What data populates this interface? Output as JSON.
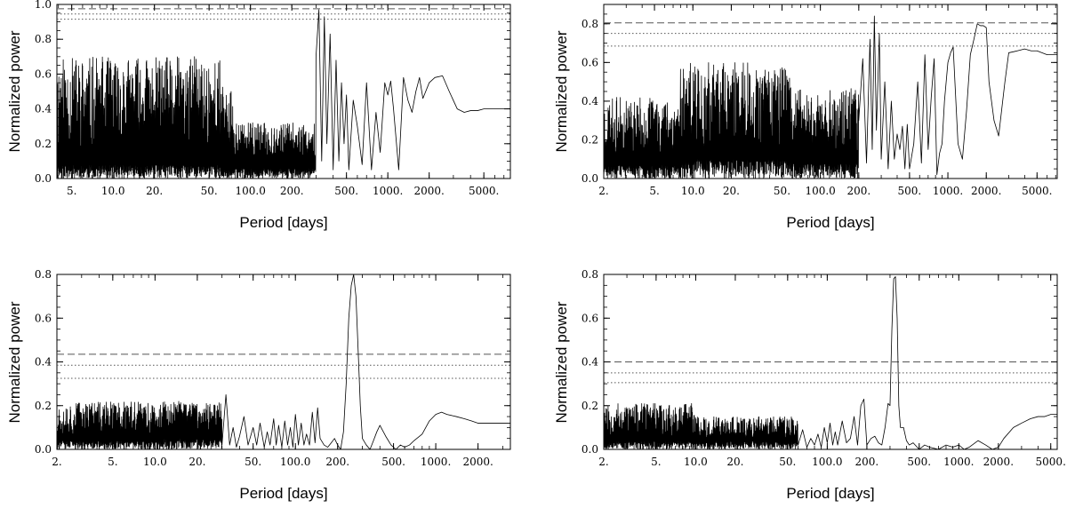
{
  "chart_data": [
    {
      "type": "line",
      "panel": "top-left",
      "xlabel": "Period [days]",
      "ylabel": "Normalized power",
      "xscale": "log",
      "xlim": [
        3.9,
        7800
      ],
      "ylim": [
        0.0,
        1.0
      ],
      "xticks": [
        {
          "v": 5,
          "label": "5."
        },
        {
          "v": 10,
          "label": "10.0"
        },
        {
          "v": 20,
          "label": "20."
        },
        {
          "v": 50,
          "label": "50."
        },
        {
          "v": 100,
          "label": "100.0"
        },
        {
          "v": 200,
          "label": "200."
        },
        {
          "v": 500,
          "label": "500."
        },
        {
          "v": 1000,
          "label": "1000."
        },
        {
          "v": 2000,
          "label": "2000."
        },
        {
          "v": 5000,
          "label": "5000."
        }
      ],
      "yticks": [
        {
          "v": 0.0,
          "label": "0.0"
        },
        {
          "v": 0.2,
          "label": "0.2"
        },
        {
          "v": 0.4,
          "label": "0.4"
        },
        {
          "v": 0.6,
          "label": "0.6"
        },
        {
          "v": 0.8,
          "label": "0.8"
        },
        {
          "v": 1.0,
          "label": "1.0"
        }
      ],
      "thresholds": [
        {
          "y": 0.975,
          "style": "dashed"
        },
        {
          "y": 0.945,
          "style": "dotted"
        },
        {
          "y": 0.915,
          "style": "dotted"
        }
      ],
      "noise": {
        "segments": [
          [
            3.9,
            60,
            0.15,
            0.55,
            0.08
          ],
          [
            60,
            75,
            0.18,
            0.35,
            0.05
          ],
          [
            75,
            300,
            0.12,
            0.2,
            0.06
          ]
        ],
        "seed": 11
      },
      "series": [
        {
          "name": "periodogram",
          "x": [
            300,
            315,
            330,
            345,
            360,
            380,
            400,
            420,
            440,
            460,
            480,
            500,
            520,
            560,
            600,
            650,
            700,
            760,
            820,
            880,
            950,
            1000,
            1050,
            1100,
            1200,
            1300,
            1400,
            1500,
            1600,
            1700,
            1800,
            2000,
            2200,
            2500,
            2800,
            3200,
            3600,
            4000,
            4500,
            5000,
            6000,
            7000,
            7800
          ],
          "y": [
            0.7,
            0.97,
            0.1,
            0.93,
            0.2,
            0.83,
            0.05,
            0.68,
            0.1,
            0.55,
            0.2,
            0.48,
            0.05,
            0.45,
            0.3,
            0.08,
            0.55,
            0.05,
            0.38,
            0.15,
            0.55,
            0.48,
            0.56,
            0.4,
            0.05,
            0.58,
            0.45,
            0.38,
            0.5,
            0.58,
            0.46,
            0.55,
            0.58,
            0.59,
            0.5,
            0.4,
            0.38,
            0.39,
            0.39,
            0.4,
            0.4,
            0.4,
            0.4
          ]
        }
      ]
    },
    {
      "type": "line",
      "panel": "top-right",
      "xlabel": "Period [days]",
      "ylabel": "Normalized power",
      "xscale": "log",
      "xlim": [
        2.0,
        7200
      ],
      "ylim": [
        0.0,
        0.9
      ],
      "xticks": [
        {
          "v": 2,
          "label": "2."
        },
        {
          "v": 5,
          "label": "5."
        },
        {
          "v": 10,
          "label": "10.0"
        },
        {
          "v": 20,
          "label": "20."
        },
        {
          "v": 50,
          "label": "50."
        },
        {
          "v": 100,
          "label": "100.0"
        },
        {
          "v": 200,
          "label": "200."
        },
        {
          "v": 500,
          "label": "500."
        },
        {
          "v": 1000,
          "label": "1000."
        },
        {
          "v": 2000,
          "label": "2000."
        },
        {
          "v": 5000,
          "label": "5000."
        }
      ],
      "yticks": [
        {
          "v": 0.0,
          "label": "0.0"
        },
        {
          "v": 0.2,
          "label": "0.2"
        },
        {
          "v": 0.4,
          "label": "0.4"
        },
        {
          "v": 0.6,
          "label": "0.6"
        },
        {
          "v": 0.8,
          "label": "0.8"
        }
      ],
      "thresholds": [
        {
          "y": 0.805,
          "style": "dashed"
        },
        {
          "y": 0.75,
          "style": "dotted"
        },
        {
          "y": 0.685,
          "style": "dotted"
        }
      ],
      "noise": {
        "segments": [
          [
            2.0,
            8,
            0.12,
            0.3,
            0.07
          ],
          [
            8,
            60,
            0.15,
            0.45,
            0.1
          ],
          [
            60,
            200,
            0.12,
            0.35,
            0.08
          ]
        ],
        "seed": 23
      },
      "series": [
        {
          "name": "periodogram",
          "x": [
            200,
            215,
            230,
            245,
            255,
            265,
            275,
            290,
            300,
            320,
            340,
            360,
            380,
            400,
            420,
            440,
            460,
            480,
            500,
            540,
            580,
            620,
            660,
            700,
            740,
            780,
            820,
            860,
            900,
            940,
            1000,
            1050,
            1100,
            1200,
            1300,
            1400,
            1500,
            1600,
            1700,
            1800,
            1900,
            2000,
            2100,
            2300,
            2500,
            2800,
            3000,
            3500,
            4000,
            4500,
            5000,
            6000,
            7200
          ],
          "y": [
            0.3,
            0.62,
            0.08,
            0.72,
            0.15,
            0.84,
            0.25,
            0.75,
            0.1,
            0.5,
            0.05,
            0.4,
            0.1,
            0.23,
            0.15,
            0.27,
            0.05,
            0.28,
            0.05,
            0.18,
            0.5,
            0.08,
            0.64,
            0.15,
            0.42,
            0.62,
            0.02,
            0.13,
            0.18,
            0.4,
            0.6,
            0.65,
            0.68,
            0.18,
            0.1,
            0.35,
            0.64,
            0.72,
            0.8,
            0.79,
            0.79,
            0.78,
            0.5,
            0.3,
            0.22,
            0.5,
            0.65,
            0.66,
            0.67,
            0.66,
            0.66,
            0.64,
            0.64
          ]
        }
      ]
    },
    {
      "type": "line",
      "panel": "bottom-left",
      "xlabel": "Period [days]",
      "ylabel": "Normalized power",
      "xscale": "log",
      "xlim": [
        2.0,
        3400
      ],
      "ylim": [
        0.0,
        0.8
      ],
      "xticks": [
        {
          "v": 2,
          "label": "2."
        },
        {
          "v": 5,
          "label": "5."
        },
        {
          "v": 10,
          "label": "10.0"
        },
        {
          "v": 20,
          "label": "20."
        },
        {
          "v": 50,
          "label": "50."
        },
        {
          "v": 100,
          "label": "100.0"
        },
        {
          "v": 200,
          "label": "200."
        },
        {
          "v": 500,
          "label": "500."
        },
        {
          "v": 1000,
          "label": "1000."
        },
        {
          "v": 2000,
          "label": "2000."
        }
      ],
      "yticks": [
        {
          "v": 0.0,
          "label": "0.0"
        },
        {
          "v": 0.2,
          "label": "0.2"
        },
        {
          "v": 0.4,
          "label": "0.4"
        },
        {
          "v": 0.6,
          "label": "0.6"
        },
        {
          "v": 0.8,
          "label": "0.8"
        }
      ],
      "thresholds": [
        {
          "y": 0.435,
          "style": "dashed"
        },
        {
          "y": 0.385,
          "style": "dotted"
        },
        {
          "y": 0.325,
          "style": "dotted"
        }
      ],
      "noise": {
        "segments": [
          [
            2.0,
            10,
            0.06,
            0.16,
            0.04
          ],
          [
            10,
            30,
            0.08,
            0.14,
            0.05
          ]
        ],
        "seed": 37
      },
      "series": [
        {
          "name": "periodogram",
          "x": [
            30,
            32,
            34,
            36,
            38,
            40,
            43,
            46,
            50,
            53,
            56,
            60,
            63,
            66,
            70,
            73,
            76,
            80,
            84,
            88,
            92,
            96,
            100,
            105,
            110,
            115,
            120,
            126,
            132,
            138,
            144,
            150,
            160,
            170,
            180,
            190,
            200,
            210,
            220,
            230,
            240,
            250,
            260,
            270,
            280,
            290,
            300,
            320,
            340,
            360,
            380,
            400,
            440,
            480,
            520,
            560,
            600,
            650,
            700,
            800,
            900,
            1000,
            1100,
            1200,
            1400,
            1600,
            1800,
            2000,
            2400,
            2800,
            3400
          ],
          "y": [
            0.02,
            0.25,
            0.02,
            0.1,
            0.01,
            0.06,
            0.15,
            0.02,
            0.1,
            0.02,
            0.12,
            0.01,
            0.08,
            0.02,
            0.14,
            0.02,
            0.11,
            0.01,
            0.13,
            0.02,
            0.1,
            0.01,
            0.16,
            0.02,
            0.12,
            0.02,
            0.07,
            0.02,
            0.17,
            0.03,
            0.19,
            0.05,
            0.02,
            0.01,
            0.03,
            0.05,
            0.02,
            0.0,
            0.08,
            0.3,
            0.6,
            0.75,
            0.8,
            0.7,
            0.45,
            0.2,
            0.05,
            0.02,
            0.0,
            0.04,
            0.08,
            0.11,
            0.06,
            0.02,
            0.0,
            0.02,
            0.01,
            0.02,
            0.04,
            0.07,
            0.13,
            0.16,
            0.17,
            0.16,
            0.15,
            0.14,
            0.13,
            0.12,
            0.12,
            0.12,
            0.12
          ]
        }
      ]
    },
    {
      "type": "line",
      "panel": "bottom-right",
      "xlabel": "Period [days]",
      "ylabel": "Normalized power",
      "xscale": "log",
      "xlim": [
        2.0,
        5600
      ],
      "ylim": [
        0.0,
        0.8
      ],
      "xticks": [
        {
          "v": 2,
          "label": "2."
        },
        {
          "v": 5,
          "label": "5."
        },
        {
          "v": 10,
          "label": "10.0"
        },
        {
          "v": 20,
          "label": "20."
        },
        {
          "v": 50,
          "label": "50."
        },
        {
          "v": 100,
          "label": "100.0"
        },
        {
          "v": 200,
          "label": "200."
        },
        {
          "v": 500,
          "label": "500."
        },
        {
          "v": 1000,
          "label": "1000."
        },
        {
          "v": 2000,
          "label": "2000."
        },
        {
          "v": 5000,
          "label": "5000."
        }
      ],
      "yticks": [
        {
          "v": 0.0,
          "label": "0.0"
        },
        {
          "v": 0.2,
          "label": "0.2"
        },
        {
          "v": 0.4,
          "label": "0.4"
        },
        {
          "v": 0.6,
          "label": "0.6"
        },
        {
          "v": 0.8,
          "label": "0.8"
        }
      ],
      "thresholds": [
        {
          "y": 0.4,
          "style": "dashed"
        },
        {
          "y": 0.35,
          "style": "dotted"
        },
        {
          "y": 0.305,
          "style": "dotted"
        }
      ],
      "noise": {
        "segments": [
          [
            2.0,
            10,
            0.06,
            0.15,
            0.04
          ],
          [
            10,
            60,
            0.05,
            0.1,
            0.04
          ]
        ],
        "seed": 53
      },
      "series": [
        {
          "name": "periodogram",
          "x": [
            60,
            65,
            70,
            75,
            80,
            85,
            90,
            95,
            100,
            105,
            110,
            115,
            120,
            130,
            140,
            150,
            160,
            170,
            180,
            190,
            200,
            215,
            230,
            245,
            260,
            275,
            290,
            300,
            310,
            320,
            330,
            340,
            350,
            360,
            380,
            400,
            420,
            450,
            500,
            550,
            600,
            700,
            800,
            900,
            1000,
            1100,
            1200,
            1400,
            1600,
            1800,
            2000,
            2200,
            2600,
            3000,
            3500,
            4000,
            4500,
            5000,
            5600
          ],
          "y": [
            0.02,
            0.09,
            0.01,
            0.05,
            0.02,
            0.07,
            0.01,
            0.1,
            0.03,
            0.12,
            0.02,
            0.08,
            0.02,
            0.13,
            0.03,
            0.05,
            0.15,
            0.02,
            0.2,
            0.23,
            0.02,
            0.05,
            0.06,
            0.03,
            0.02,
            0.1,
            0.21,
            0.2,
            0.55,
            0.78,
            0.79,
            0.6,
            0.2,
            0.1,
            0.1,
            0.04,
            0.02,
            0.03,
            0.0,
            0.02,
            0.01,
            0.0,
            0.02,
            0.01,
            0.02,
            0.0,
            0.01,
            0.04,
            0.02,
            0.0,
            0.01,
            0.05,
            0.1,
            0.12,
            0.14,
            0.15,
            0.15,
            0.16,
            0.16
          ]
        }
      ]
    }
  ]
}
